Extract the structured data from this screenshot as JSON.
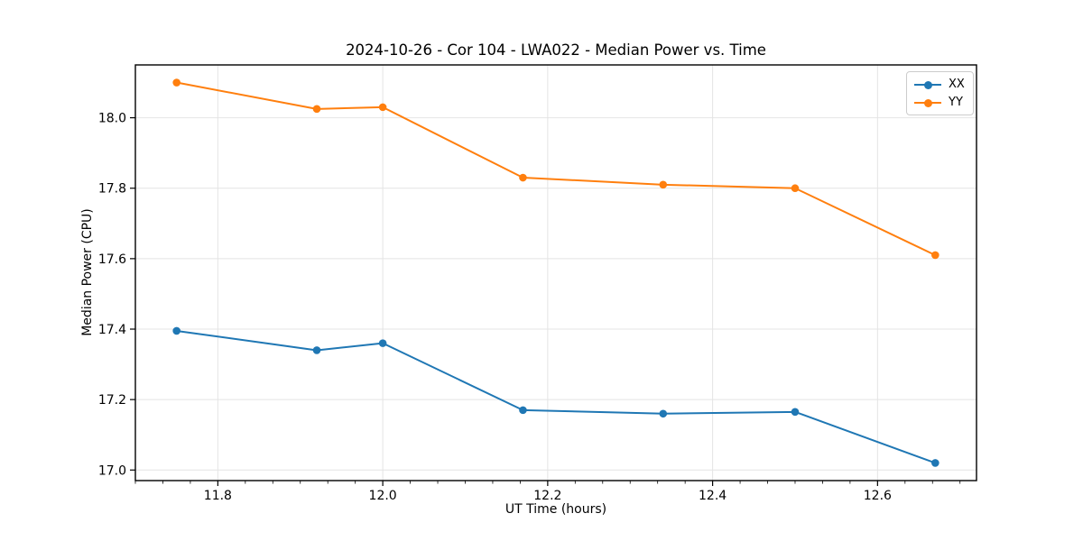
{
  "chart_data": {
    "type": "line",
    "title": "2024-10-26 - Cor 104 - LWA022 - Median Power vs. Time",
    "xlabel": "UT Time (hours)",
    "ylabel": "Median Power (CPU)",
    "x": [
      11.75,
      11.92,
      12.0,
      12.17,
      12.34,
      12.5,
      12.67
    ],
    "series": [
      {
        "name": "XX",
        "color": "#1f77b4",
        "values": [
          17.395,
          17.34,
          17.36,
          17.17,
          17.16,
          17.165,
          17.02
        ]
      },
      {
        "name": "YY",
        "color": "#ff7f0e",
        "values": [
          18.1,
          18.025,
          18.03,
          17.83,
          17.81,
          17.8,
          17.61
        ]
      }
    ],
    "xlim": [
      11.7,
      12.72
    ],
    "ylim": [
      16.97,
      18.15
    ],
    "xticks": {
      "values": [
        11.8,
        12.0,
        12.2,
        12.4,
        12.6
      ],
      "labels": [
        "11.8",
        "12.0",
        "12.2",
        "12.4",
        "12.6"
      ]
    },
    "yticks": {
      "values": [
        17.0,
        17.2,
        17.4,
        17.6,
        17.8,
        18.0
      ],
      "labels": [
        "17.0",
        "17.2",
        "17.4",
        "17.6",
        "18.0"
      ],
      "labels_full": [
        "17.0",
        "17.2",
        "17.4",
        "17.6",
        "17.8",
        "18.0"
      ]
    },
    "x_minor_divisions": 6,
    "grid": true,
    "legend": {
      "position": "upper right",
      "frame": true
    },
    "style": {
      "background": "#ffffff",
      "grid_color": "#e4e4e4",
      "spine_color": "#000000",
      "tick_color": "#000000",
      "text_color": "#000000",
      "line_width": 2,
      "marker": "circle",
      "marker_radius": 4.3
    }
  }
}
